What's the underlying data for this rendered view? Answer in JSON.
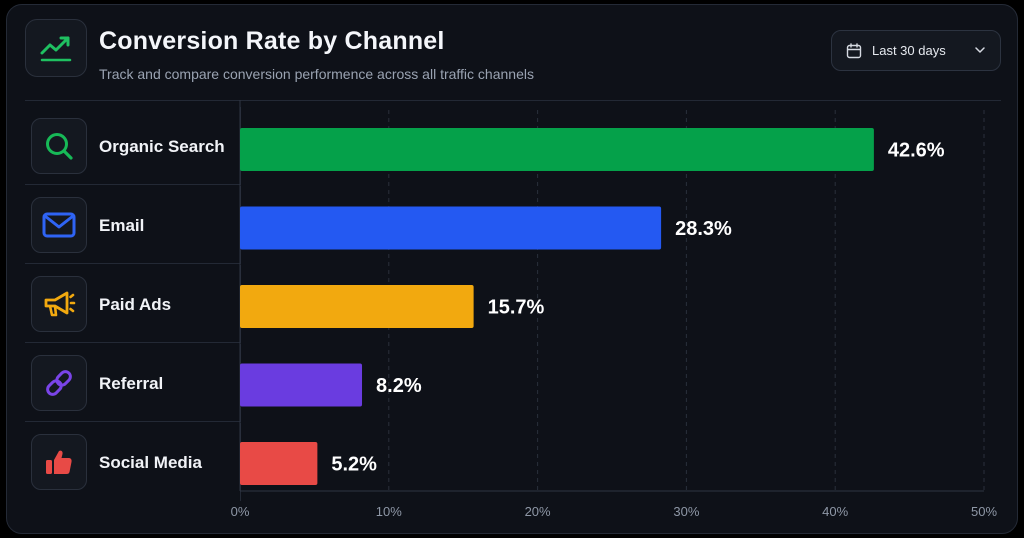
{
  "header": {
    "title": "Conversion Rate by Channel",
    "subtitle": "Track and compare conversion performence across all traffic channels",
    "date_range": "Last 30 days"
  },
  "colors": {
    "background": "#0e1118",
    "organic": "#05a14a",
    "email": "#2459f2",
    "paid": "#f2a90f",
    "referral": "#6a3ce0",
    "social": "#e84a46"
  },
  "channels": [
    {
      "label": "Organic Search",
      "icon": "search-icon"
    },
    {
      "label": "Email",
      "icon": "mail-icon"
    },
    {
      "label": "Paid Ads",
      "icon": "megaphone-icon"
    },
    {
      "label": "Referral",
      "icon": "link-icon"
    },
    {
      "label": "Social Media",
      "icon": "thumbs-up-icon"
    }
  ],
  "chart_data": {
    "type": "bar",
    "orientation": "horizontal",
    "categories": [
      "Organic Search",
      "Email",
      "Paid Ads",
      "Referral",
      "Social Media"
    ],
    "values": [
      42.6,
      28.3,
      15.7,
      8.2,
      5.2
    ],
    "value_labels": [
      "42.6%",
      "28.3%",
      "15.7%",
      "8.2%",
      "5.2%"
    ],
    "xlim": [
      0,
      50
    ],
    "xticks": [
      "0%",
      "10%",
      "20%",
      "30%",
      "40%",
      "50%"
    ],
    "grid": true,
    "colors": [
      "#05a14a",
      "#2459f2",
      "#f2a90f",
      "#6a3ce0",
      "#e84a46"
    ]
  }
}
